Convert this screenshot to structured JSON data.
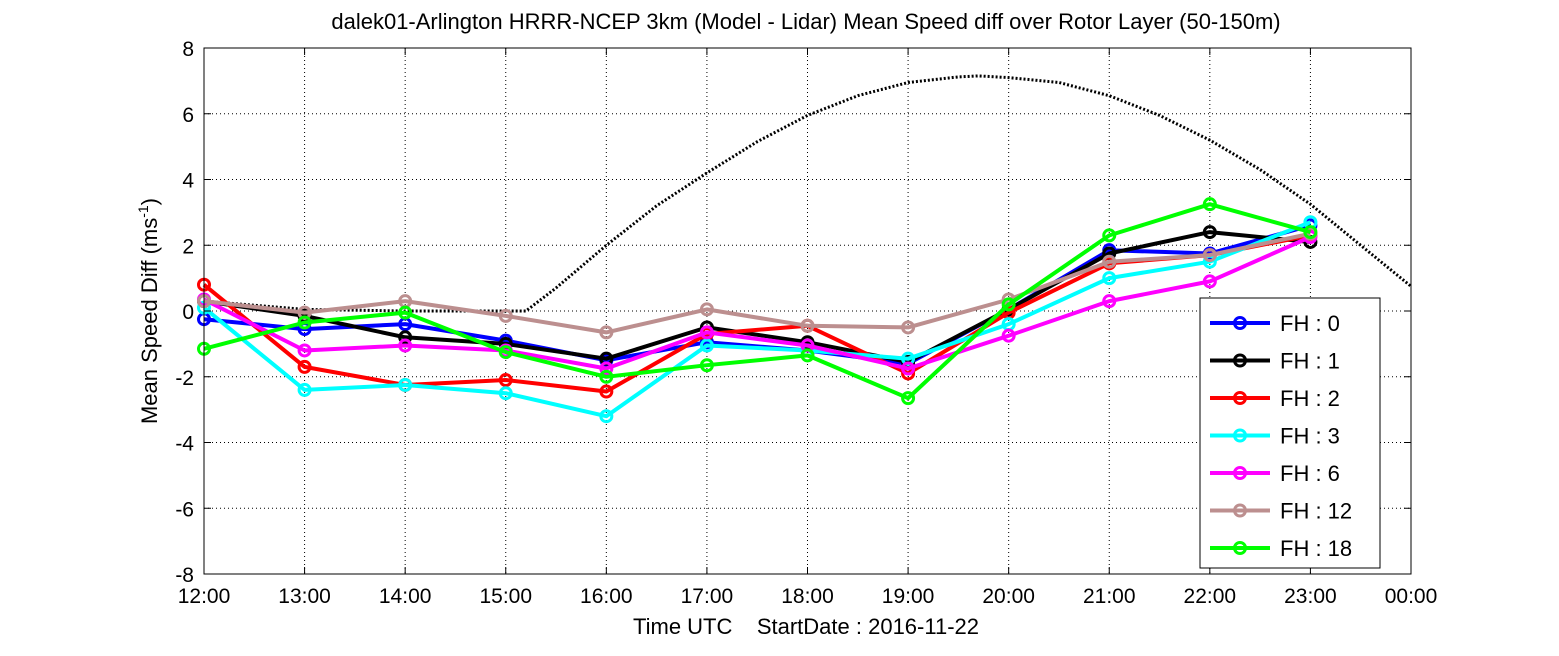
{
  "chart_data": {
    "type": "line",
    "title": "dalek01-Arlington HRRR-NCEP 3km (Model - Lidar) Mean Speed diff over Rotor Layer (50-150m)",
    "xlabel": "Time UTC    StartDate : 2016-11-22",
    "ylabel_main": "Mean Speed Diff (ms",
    "ylabel_sup": "-1",
    "ylabel_end": ")",
    "x_tick_labels": [
      "12:00",
      "13:00",
      "14:00",
      "15:00",
      "16:00",
      "17:00",
      "18:00",
      "19:00",
      "20:00",
      "21:00",
      "22:00",
      "23:00",
      "00:00"
    ],
    "y_tick_labels": [
      "-8",
      "-6",
      "-4",
      "-2",
      "0",
      "2",
      "4",
      "6",
      "8"
    ],
    "ylim": [
      -8,
      8
    ],
    "xlim_hours": [
      12,
      24
    ],
    "grid": true,
    "legend_position": "lower-right",
    "series": [
      {
        "name": "FH : 0",
        "color": "#0000ff",
        "hours": [
          12,
          13,
          14,
          15,
          16,
          17,
          18,
          19,
          20,
          21,
          22,
          23
        ],
        "values": [
          -0.25,
          -0.55,
          -0.4,
          -0.9,
          -1.5,
          -0.95,
          -1.2,
          -1.6,
          0.05,
          1.85,
          1.75,
          2.6
        ]
      },
      {
        "name": "FH : 1",
        "color": "#000000",
        "hours": [
          12,
          13,
          14,
          15,
          16,
          17,
          18,
          19,
          20,
          21,
          22,
          23
        ],
        "values": [
          0.3,
          -0.15,
          -0.8,
          -1.0,
          -1.45,
          -0.5,
          -0.95,
          -1.55,
          0.05,
          1.75,
          2.4,
          2.1
        ]
      },
      {
        "name": "FH : 2",
        "color": "#ff0000",
        "hours": [
          12,
          13,
          14,
          15,
          16,
          17,
          18,
          19,
          20,
          21,
          22,
          23
        ],
        "values": [
          0.8,
          -1.7,
          -2.25,
          -2.1,
          -2.45,
          -0.7,
          -0.45,
          -1.9,
          -0.05,
          1.45,
          1.7,
          2.3
        ]
      },
      {
        "name": "FH : 3",
        "color": "#00ffff",
        "hours": [
          12,
          13,
          14,
          15,
          16,
          17,
          18,
          19,
          20,
          21,
          22,
          23
        ],
        "values": [
          0.1,
          -2.4,
          -2.25,
          -2.5,
          -3.2,
          -1.05,
          -1.2,
          -1.45,
          -0.4,
          1.0,
          1.5,
          2.7
        ]
      },
      {
        "name": "FH : 6",
        "color": "#ff00ff",
        "hours": [
          12,
          13,
          14,
          15,
          16,
          17,
          18,
          19,
          20,
          21,
          22,
          23
        ],
        "values": [
          0.35,
          -1.2,
          -1.05,
          -1.2,
          -1.75,
          -0.65,
          -1.05,
          -1.75,
          -0.75,
          0.3,
          0.9,
          2.25
        ]
      },
      {
        "name": "FH : 12",
        "color": "#bc8f8f",
        "hours": [
          12,
          13,
          14,
          15,
          16,
          17,
          18,
          19,
          20,
          21,
          22,
          23
        ],
        "values": [
          0.3,
          -0.05,
          0.3,
          -0.15,
          -0.65,
          0.05,
          -0.45,
          -0.5,
          0.35,
          1.5,
          1.7,
          2.35
        ]
      },
      {
        "name": "FH : 18",
        "color": "#00ff00",
        "hours": [
          12,
          13,
          14,
          15,
          16,
          17,
          18,
          19,
          20,
          21,
          22,
          23
        ],
        "values": [
          -1.15,
          -0.35,
          -0.05,
          -1.25,
          -2.0,
          -1.65,
          -1.35,
          -2.65,
          0.2,
          2.3,
          3.25,
          2.4
        ]
      }
    ],
    "reference_curve": {
      "style": "dotted",
      "color": "#000000",
      "hours": [
        12,
        13,
        14,
        15,
        15.2,
        15.5,
        16,
        16.5,
        17,
        17.5,
        18,
        18.5,
        19,
        19.5,
        19.7,
        20,
        20.5,
        21,
        21.5,
        22,
        22.5,
        23,
        23.5,
        24
      ],
      "values": [
        0.3,
        0.05,
        0.0,
        0.0,
        0.0,
        0.7,
        2.0,
        3.2,
        4.2,
        5.15,
        5.95,
        6.55,
        6.95,
        7.12,
        7.15,
        7.1,
        6.95,
        6.55,
        5.95,
        5.2,
        4.3,
        3.25,
        2.0,
        0.75
      ]
    }
  }
}
